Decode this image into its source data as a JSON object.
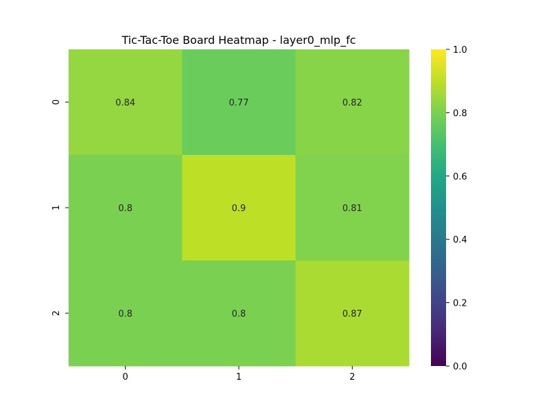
{
  "chart_data": {
    "type": "heatmap",
    "title": "Tic-Tac-Toe Board Heatmap - layer0_mlp_fc",
    "xlabel": "",
    "ylabel": "",
    "x_categories": [
      "0",
      "1",
      "2"
    ],
    "y_categories": [
      "0",
      "1",
      "2"
    ],
    "values": [
      [
        0.84,
        0.77,
        0.82
      ],
      [
        0.8,
        0.9,
        0.81
      ],
      [
        0.8,
        0.8,
        0.87
      ]
    ],
    "annotations": [
      [
        "0.84",
        "0.77",
        "0.82"
      ],
      [
        "0.8",
        "0.9",
        "0.81"
      ],
      [
        "0.8",
        "0.8",
        "0.87"
      ]
    ],
    "colormap": "viridis",
    "vmin": 0.0,
    "vmax": 1.0,
    "colorbar_ticks": [
      "0.0",
      "0.2",
      "0.4",
      "0.6",
      "0.8",
      "1.0"
    ],
    "grid": false
  }
}
